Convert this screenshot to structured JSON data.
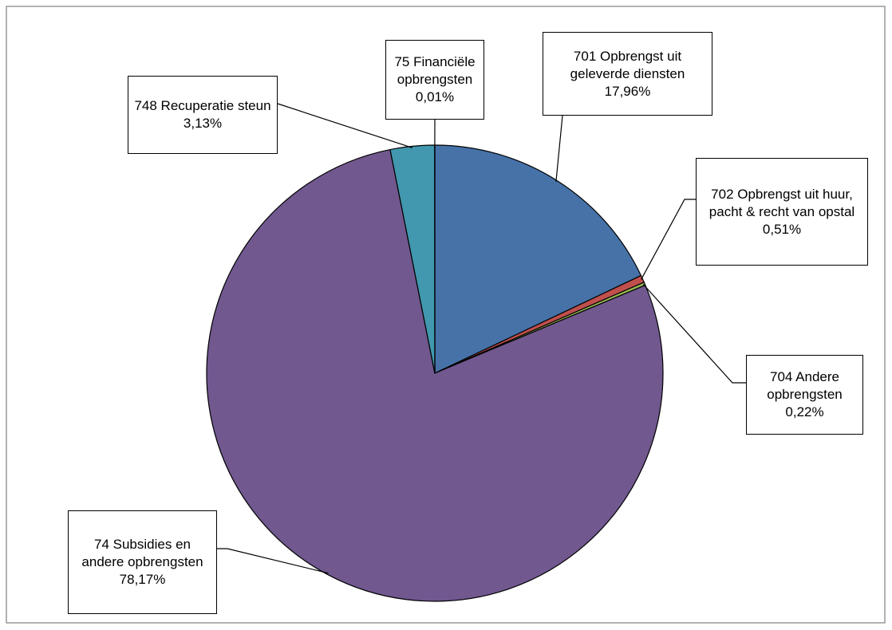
{
  "chart_data": {
    "type": "pie",
    "categories": [
      "701 Opbrengst uit geleverde diensten",
      "702 Opbrengst uit huur, pacht & recht van opstal",
      "704 Andere opbrengsten",
      "74 Subsidies en andere opbrengsten",
      "748 Recuperatie steun",
      "75 Financiële opbrengsten"
    ],
    "values": [
      17.96,
      0.51,
      0.22,
      78.17,
      3.13,
      0.01
    ],
    "value_labels": [
      "17,96%",
      "0,51%",
      "0,22%",
      "78,17%",
      "3,13%",
      "0,01%"
    ],
    "colors": [
      "#4672a8",
      "#c0504d",
      "#98b954",
      "#71588f",
      "#4198af",
      "#f79646"
    ]
  }
}
